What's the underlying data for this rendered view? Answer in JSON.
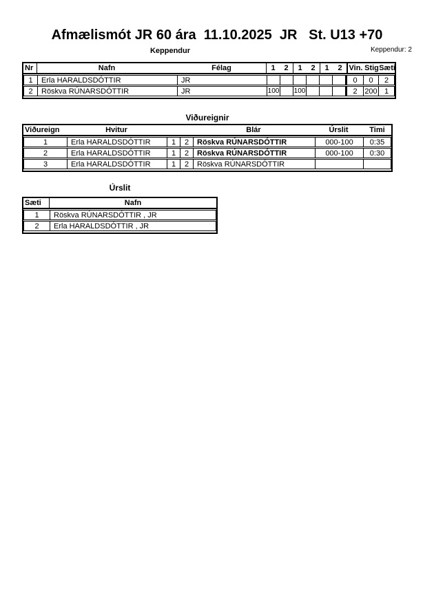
{
  "page": {
    "title": "Afmælismót JR 60 ára  11.10.2025  JR   St. U13 +70"
  },
  "keppendur": {
    "section_title": "Keppendur",
    "count_label": "Keppendur: 2",
    "headers": {
      "nr": "Nr",
      "nafn": "Nafn",
      "felag": "Félag",
      "s1": "1",
      "s2": "2",
      "s3": "1",
      "s4": "2",
      "s5": "1",
      "s6": "2",
      "vin": "Vin.",
      "stig": "Stig",
      "saeti": "Sæti"
    },
    "rows": [
      {
        "nr": "1",
        "nafn": "Erla HARALDSDÓTTIR",
        "felag": "JR",
        "s1": "",
        "s2": "",
        "s3": "",
        "s4": "",
        "s5": "",
        "s6": "",
        "vin": "0",
        "stig": "0",
        "saeti": "2"
      },
      {
        "nr": "2",
        "nafn": "Röskva RÚNARSDÓTTIR",
        "felag": "JR",
        "s1": "100",
        "s2": "",
        "s3": "100",
        "s4": "",
        "s5": "",
        "s6": "",
        "vin": "2",
        "stig": "200",
        "saeti": "1"
      }
    ]
  },
  "vidureignir": {
    "section_title": "Viðureignir",
    "headers": {
      "vidureign": "Viðureign",
      "hvitur": "Hvitur",
      "blar": "Blár",
      "urslit": "Úrslit",
      "timi": "Timi"
    },
    "rows": [
      {
        "nr": "1",
        "hvitur": "Erla HARALDSDÓTTIR",
        "c1": "1",
        "c2": "2",
        "blar": "Röskva RÚNARSDÓTTIR",
        "urslit": "000-100",
        "timi": "0:35"
      },
      {
        "nr": "2",
        "hvitur": "Erla HARALDSDÓTTIR",
        "c1": "1",
        "c2": "2",
        "blar": "Röskva RÚNARSDÓTTIR",
        "urslit": "000-100",
        "timi": "0:30"
      },
      {
        "nr": "3",
        "hvitur": "Erla HARALDSDÓTTIR",
        "c1": "1",
        "c2": "2",
        "blar": "Röskva RÚNARSDÓTTIR",
        "urslit": "",
        "timi": ""
      }
    ]
  },
  "urslit": {
    "section_title": "Úrslit",
    "headers": {
      "saeti": "Sæti",
      "nafn": "Nafn"
    },
    "rows": [
      {
        "saeti": "1",
        "nafn": "Röskva RÚNARSDÓTTIR , JR"
      },
      {
        "saeti": "2",
        "nafn": "Erla HARALDSDÓTTIR , JR"
      }
    ]
  }
}
